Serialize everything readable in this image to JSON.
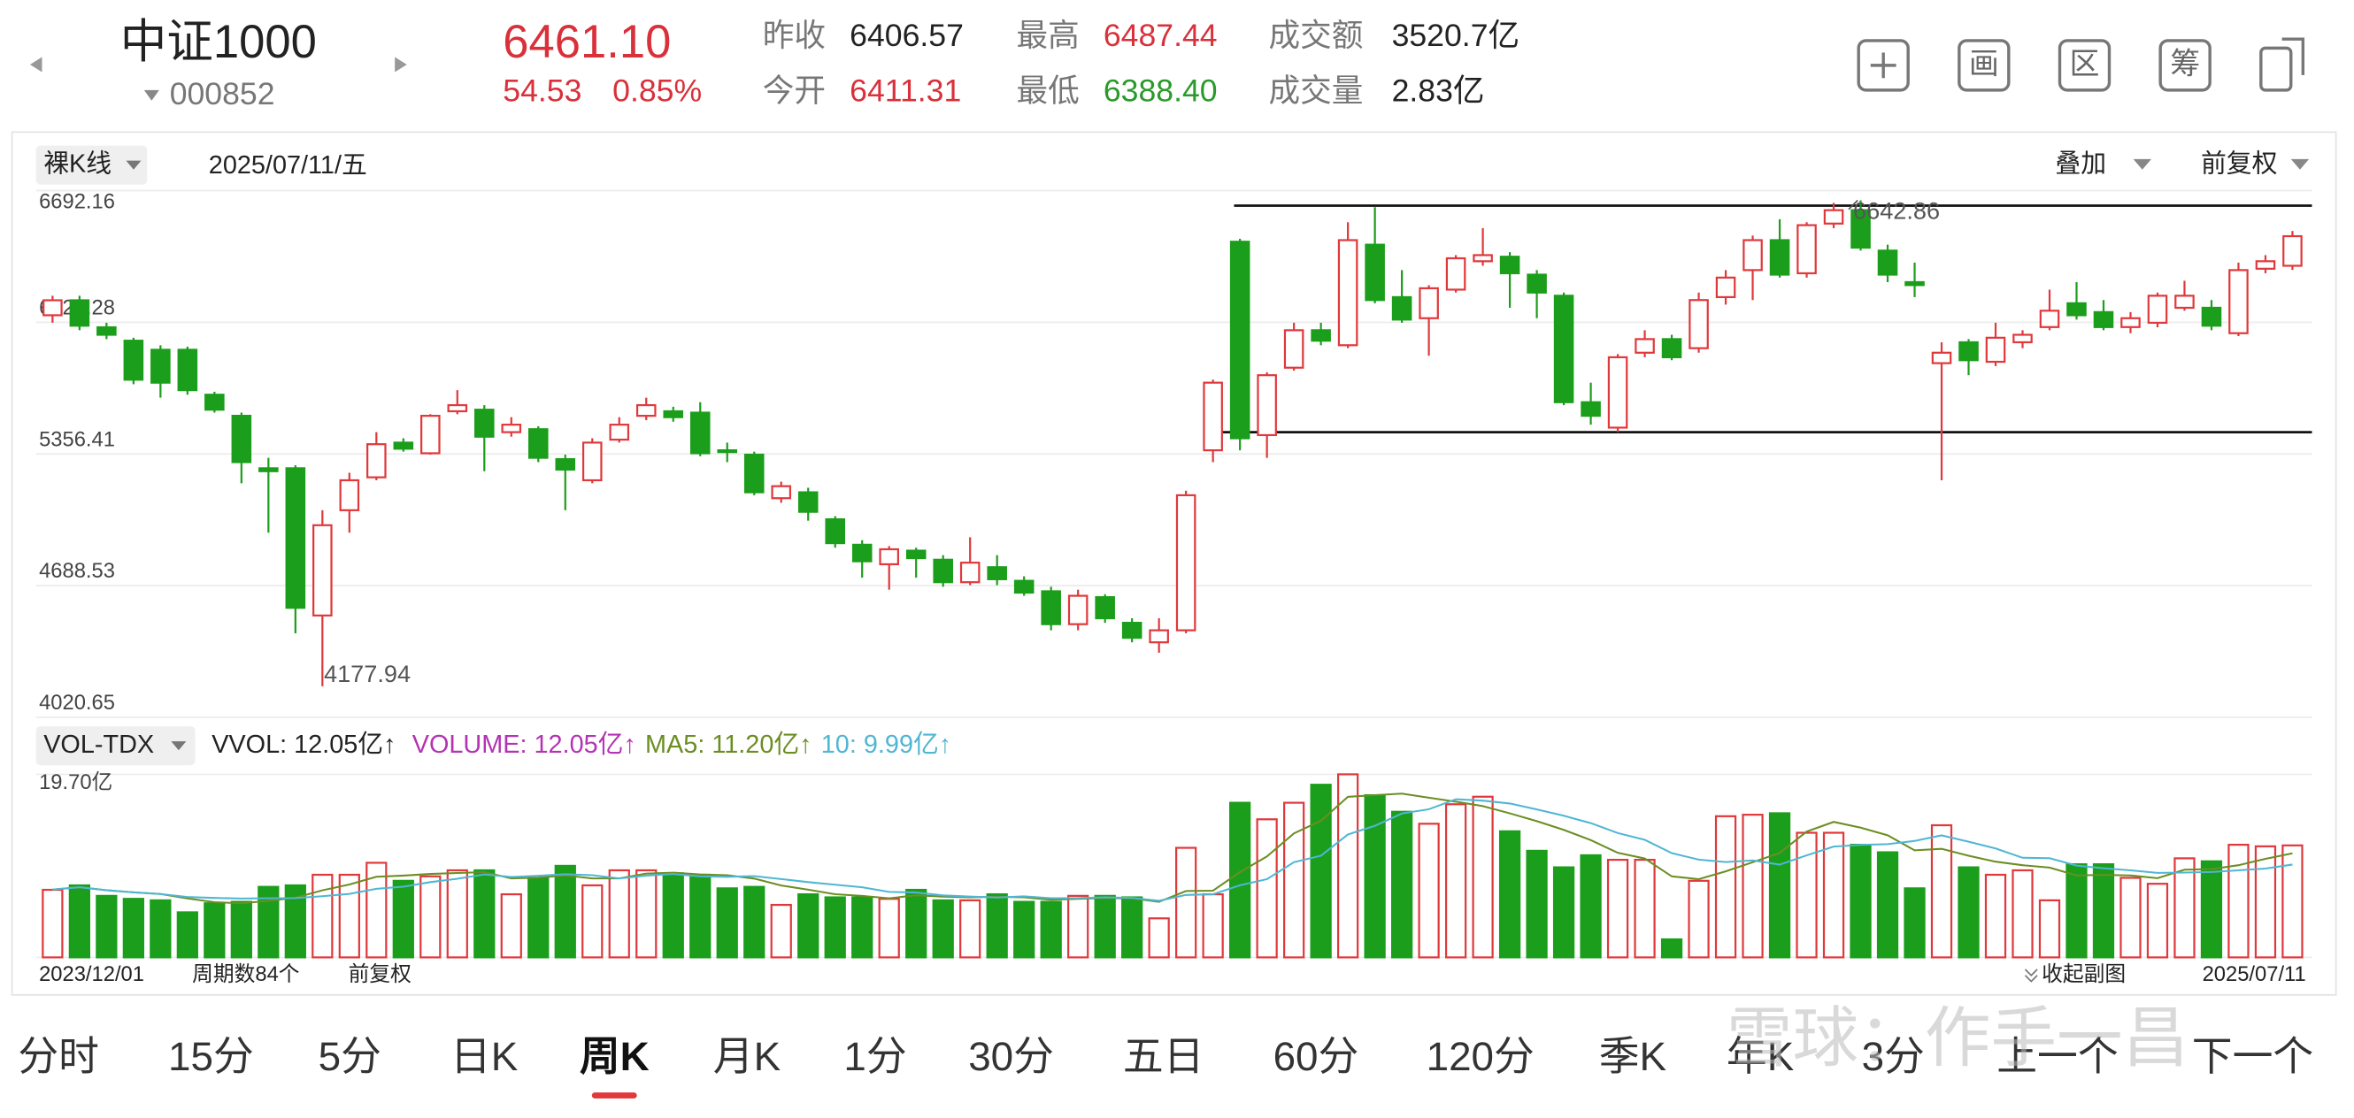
{
  "header": {
    "name": "中证1000",
    "code": "000852",
    "price": "6461.10",
    "change": "54.53",
    "change_pct": "0.85%",
    "stats": [
      {
        "label": "昨收",
        "value": "6406.57",
        "tone": "flat"
      },
      {
        "label": "最高",
        "value": "6487.44",
        "tone": "up"
      },
      {
        "label": "成交额",
        "value": "3520.7亿",
        "tone": "flat"
      },
      {
        "label": "今开",
        "value": "6411.31",
        "tone": "up"
      },
      {
        "label": "最低",
        "value": "6388.40",
        "tone": "down"
      },
      {
        "label": "成交量",
        "value": "2.83亿",
        "tone": "flat"
      }
    ],
    "tools": [
      "画",
      "区",
      "筹"
    ]
  },
  "toolbar": {
    "mode": "裸K线",
    "date": "2025/07/11/五",
    "overlay": "叠加",
    "adjust": "前复权"
  },
  "indicator": {
    "name": "VOL-TDX",
    "readout": "VVOL: 12.05亿↑"
  },
  "footer": {
    "count": "周期数84个",
    "adjust": "前复权",
    "collapse": "收起副图"
  },
  "tabs": [
    "分时",
    "15分",
    "5分",
    "日K",
    "周K",
    "月K",
    "1分",
    "30分",
    "五日",
    "60分",
    "120分",
    "季K",
    "年K",
    "3分",
    "上一个",
    "下一个"
  ],
  "active_tab": 4,
  "watermark": "雪球：作手一昌",
  "chart_data": [
    {
      "type": "candlestick",
      "up_color": "#e0383b",
      "down_color": "#1b9e1b",
      "ylim": [
        4020.65,
        6692.16
      ],
      "yticks": [
        6692.16,
        6024.28,
        5356.41,
        4688.53,
        4020.65
      ],
      "grid": true,
      "open": [
        6060,
        6136,
        5999,
        5931,
        5885,
        5885,
        5657,
        5550,
        5284,
        5284,
        4537,
        5071,
        5238,
        5414,
        5360,
        5573,
        5581,
        5467,
        5482,
        5330,
        5223,
        5429,
        5550,
        5573,
        5566,
        5375,
        5353,
        5132,
        5162,
        5025,
        4896,
        4797,
        4866,
        4820,
        4706,
        4782,
        4713,
        4660,
        4493,
        4630,
        4500,
        4401,
        4462,
        5375,
        6433,
        5452,
        5794,
        5984,
        5908,
        6418,
        6152,
        6045,
        6190,
        6334,
        6357,
        6266,
        6159,
        5619,
        5490,
        5870,
        5939,
        5893,
        6152,
        6289,
        6441,
        6273,
        6525,
        6593,
        6388,
        6228,
        5817,
        5923,
        5824,
        5923,
        6000,
        6121,
        6076,
        6000,
        6022,
        6098,
        6098,
        5969,
        6296,
        6311
      ],
      "high": [
        6159,
        6159,
        6022,
        5946,
        5908,
        5901,
        5672,
        5566,
        5337,
        5299,
        5071,
        5261,
        5467,
        5436,
        5558,
        5680,
        5604,
        5543,
        5497,
        5353,
        5436,
        5543,
        5642,
        5596,
        5619,
        5414,
        5368,
        5216,
        5185,
        5041,
        4919,
        4889,
        4881,
        4843,
        4934,
        4843,
        4736,
        4683,
        4668,
        4645,
        4523,
        4523,
        5170,
        5733,
        6448,
        5771,
        6022,
        6022,
        6532,
        6608,
        6289,
        6212,
        6365,
        6502,
        6380,
        6289,
        6175,
        5718,
        5863,
        5984,
        5961,
        6175,
        6289,
        6464,
        6547,
        6532,
        6630,
        6642.86,
        6418,
        6327,
        5923,
        5939,
        6022,
        5984,
        6190,
        6228,
        6137,
        6076,
        6175,
        6235,
        6137,
        6327,
        6365,
        6487.44
      ],
      "low": [
        6022,
        5984,
        5939,
        5710,
        5642,
        5657,
        5566,
        5208,
        4957,
        4447,
        4177.94,
        4957,
        5223,
        5368,
        5353,
        5558,
        5269,
        5444,
        5315,
        5071,
        5208,
        5414,
        5528,
        5520,
        5345,
        5315,
        5147,
        5109,
        5018,
        4881,
        4729,
        4668,
        4729,
        4683,
        4691,
        4691,
        4637,
        4462,
        4462,
        4500,
        4401,
        4348,
        4447,
        5315,
        5375,
        5337,
        5779,
        5908,
        5893,
        6121,
        6022,
        5855,
        6175,
        6311,
        6098,
        6045,
        5604,
        5505,
        5467,
        5847,
        5832,
        5870,
        6114,
        6137,
        6251,
        6251,
        6502,
        6388,
        6228,
        6152,
        5223,
        5756,
        5802,
        5893,
        5984,
        6038,
        5984,
        5969,
        5999,
        6083,
        5984,
        5954,
        6273,
        6290
      ],
      "close": [
        6136,
        6007,
        5961,
        5733,
        5718,
        5680,
        5581,
        5315,
        5269,
        4576,
        4995,
        5223,
        5406,
        5383,
        5550,
        5604,
        5444,
        5505,
        5337,
        5277,
        5414,
        5505,
        5604,
        5543,
        5360,
        5368,
        5162,
        5193,
        5063,
        4904,
        4812,
        4873,
        4828,
        4706,
        4805,
        4721,
        4653,
        4493,
        4637,
        4523,
        4424,
        4462,
        5147,
        5718,
        5436,
        5756,
        5984,
        5931,
        6441,
        6137,
        6038,
        6197,
        6349,
        6365,
        6273,
        6175,
        5619,
        5550,
        5847,
        5939,
        5847,
        6137,
        6251,
        6441,
        6266,
        6517,
        6593,
        6403,
        6266,
        6213,
        5870,
        5832,
        5946,
        5961,
        6083,
        6060,
        6000,
        6045,
        6159,
        6159,
        6007,
        6289,
        6334,
        6461.1
      ]
    },
    {
      "type": "bar",
      "ylim": [
        0,
        19.7
      ],
      "yticks": [
        {
          "value": 19.7,
          "label": "19.70亿"
        }
      ],
      "categories": [
        "2023/12/01",
        null,
        null,
        null,
        null,
        null,
        null,
        null,
        null,
        null,
        null,
        null,
        null,
        null,
        null,
        null,
        null,
        null,
        null,
        null,
        null,
        null,
        null,
        null,
        null,
        null,
        null,
        null,
        null,
        null,
        null,
        null,
        null,
        null,
        null,
        null,
        null,
        null,
        null,
        null,
        null,
        null,
        null,
        null,
        null,
        null,
        null,
        null,
        null,
        null,
        null,
        null,
        null,
        null,
        null,
        null,
        null,
        null,
        null,
        null,
        null,
        null,
        null,
        null,
        null,
        null,
        null,
        null,
        null,
        null,
        null,
        null,
        null,
        null,
        null,
        null,
        null,
        null,
        null,
        null,
        null,
        null,
        null,
        "2025/07/11"
      ],
      "series": [
        {
          "name": "VOLUME",
          "readout": ": 12.05亿↑",
          "color": "#b433b4",
          "values": [
            7.27,
            7.75,
            6.62,
            6.3,
            6.14,
            4.85,
            5.82,
            5.98,
            7.59,
            7.75,
            8.89,
            8.89,
            10.18,
            8.24,
            8.72,
            9.37,
            9.37,
            6.79,
            8.56,
            9.85,
            7.75,
            9.37,
            9.37,
            9.05,
            8.89,
            7.43,
            7.59,
            5.65,
            6.79,
            6.46,
            6.46,
            6.3,
            7.27,
            6.14,
            6.14,
            6.79,
            5.98,
            5.98,
            6.62,
            6.62,
            6.46,
            4.2,
            11.79,
            6.79,
            16.64,
            14.86,
            16.64,
            18.58,
            19.7,
            17.45,
            15.67,
            14.38,
            16.48,
            17.29,
            13.57,
            11.47,
            9.69,
            10.99,
            10.5,
            10.5,
            1.94,
            8.24,
            15.19,
            15.35,
            15.51,
            13.41,
            13.41,
            12.12,
            11.31,
            7.43,
            14.22,
            9.69,
            8.89,
            9.37,
            6.14,
            10.02,
            10.02,
            8.56,
            7.92,
            10.66,
            10.34,
            12.12,
            11.95,
            12.05
          ]
        },
        {
          "name": "MA5",
          "readout": ": 11.20亿↑",
          "color": "#6b8e23",
          "values": [
            7.3,
            7.55,
            7.23,
            7.0,
            6.82,
            6.34,
            5.94,
            5.82,
            6.08,
            6.42,
            7.22,
            7.84,
            8.68,
            8.8,
            8.98,
            9.08,
            9.18,
            8.5,
            8.58,
            8.82,
            8.5,
            8.5,
            9.02,
            9.12,
            8.92,
            8.84,
            8.48,
            7.74,
            7.28,
            6.8,
            6.62,
            6.36,
            6.68,
            6.54,
            6.46,
            6.52,
            6.46,
            6.2,
            6.3,
            6.4,
            6.34,
            5.98,
            7.14,
            7.18,
            9.18,
            10.86,
            13.34,
            14.7,
            17.28,
            17.46,
            17.62,
            17.18,
            16.76,
            16.28,
            15.5,
            14.66,
            13.72,
            12.62,
            11.26,
            10.64,
            8.72,
            8.42,
            9.26,
            10.24,
            11.24,
            13.54,
            14.58,
            13.96,
            13.14,
            11.52,
            11.68,
            10.94,
            10.3,
            9.92,
            9.66,
            8.82,
            8.88,
            8.82,
            8.52,
            9.44,
            9.5,
            9.92,
            10.6,
            11.2
          ]
        },
        {
          "name": "10",
          "readout": ": 9.99亿↑",
          "color": "#4fb6d3",
          "values": [
            7.3,
            7.55,
            7.23,
            7.0,
            6.82,
            6.5,
            6.4,
            6.33,
            6.36,
            6.38,
            6.58,
            6.83,
            7.38,
            7.61,
            8.1,
            8.46,
            8.93,
            8.65,
            8.78,
            8.95,
            8.84,
            8.5,
            8.8,
            8.97,
            8.71,
            8.67,
            8.75,
            8.43,
            8.1,
            7.82,
            7.55,
            7.05,
            6.98,
            6.67,
            6.54,
            6.44,
            6.57,
            6.37,
            6.38,
            6.46,
            6.4,
            6.09,
            6.72,
            6.79,
            7.76,
            8.42,
            10.24,
            10.94,
            13.23,
            14.16,
            15.48,
            15.94,
            17.02,
            16.87,
            16.56,
            15.92,
            15.24,
            14.45,
            13.38,
            12.65,
            11.22,
            10.52,
            10.26,
            10.44,
            9.98,
            10.98,
            11.92,
            12.1,
            12.19,
            12.53,
            13.13,
            12.45,
            11.72,
            10.72,
            10.67,
            9.88,
            9.59,
            9.37,
            9.09,
            9.13,
            9.19,
            9.37,
            9.56,
            9.99
          ]
        }
      ]
    }
  ]
}
